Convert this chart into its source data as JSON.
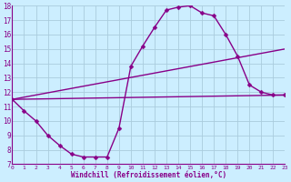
{
  "xlabel": "Windchill (Refroidissement éolien,°C)",
  "bg_color": "#cceeff",
  "grid_color": "#aaccdd",
  "line_color": "#880088",
  "xlim": [
    0,
    23
  ],
  "ylim": [
    7,
    18
  ],
  "xticks": [
    0,
    1,
    2,
    3,
    4,
    5,
    6,
    7,
    8,
    9,
    10,
    11,
    12,
    13,
    14,
    15,
    16,
    17,
    18,
    19,
    20,
    21,
    22,
    23
  ],
  "yticks": [
    7,
    8,
    9,
    10,
    11,
    12,
    13,
    14,
    15,
    16,
    17,
    18
  ],
  "line1_x": [
    0,
    1,
    2,
    3,
    4,
    5,
    6,
    7,
    8,
    9,
    10,
    11,
    12,
    13,
    14,
    15,
    16,
    17,
    18,
    19,
    20,
    21,
    22,
    23
  ],
  "line1_y": [
    11.5,
    10.7,
    10.0,
    9.0,
    8.3,
    7.7,
    7.5,
    7.5,
    7.5,
    9.5,
    13.8,
    15.2,
    16.5,
    17.7,
    17.9,
    18.0,
    17.5,
    17.3,
    16.0,
    14.5,
    12.5,
    12.0,
    11.8,
    11.8
  ],
  "line2_x": [
    0,
    23
  ],
  "line2_y": [
    11.5,
    11.8
  ],
  "line3_x": [
    0,
    23
  ],
  "line3_y": [
    11.5,
    15.0
  ],
  "markersize": 2.5,
  "linewidth": 1.0
}
